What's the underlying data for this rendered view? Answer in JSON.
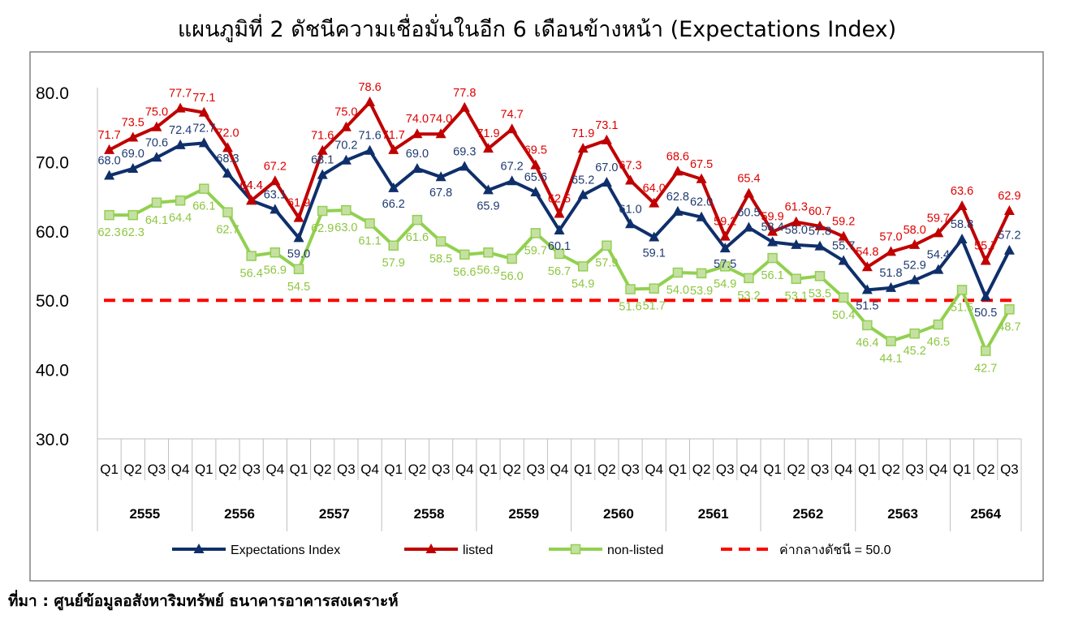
{
  "title": "แผนภูมิที่ 2 ดัชนีความเชื่อมั่นในอีก 6 เดือนข้างหน้า (Expectations Index)",
  "source": "ที่มา : ศูนย์ข้อมูลอสังหาริมทรัพย์ ธนาคารอาคารสงเคราะห์",
  "chart_data": {
    "type": "line",
    "title": "แผนภูมิที่ 2 ดัชนีความเชื่อมั่นในอีก 6 เดือนข้างหน้า (Expectations Index)",
    "xlabel": "",
    "ylabel": "",
    "ylim": [
      30,
      80
    ],
    "yticks": [
      "30.0",
      "40.0",
      "50.0",
      "60.0",
      "70.0",
      "80.0"
    ],
    "grid": false,
    "legend_position": "bottom",
    "quarters": [
      "Q1",
      "Q2",
      "Q3",
      "Q4",
      "Q1",
      "Q2",
      "Q3",
      "Q4",
      "Q1",
      "Q2",
      "Q3",
      "Q4",
      "Q1",
      "Q2",
      "Q3",
      "Q4",
      "Q1",
      "Q2",
      "Q3",
      "Q4",
      "Q1",
      "Q2",
      "Q3",
      "Q4",
      "Q1",
      "Q2",
      "Q3",
      "Q4",
      "Q1",
      "Q2",
      "Q3",
      "Q4",
      "Q1",
      "Q2",
      "Q3",
      "Q4",
      "Q1",
      "Q2",
      "Q3"
    ],
    "years": [
      {
        "label": "2555",
        "count": 4
      },
      {
        "label": "2556",
        "count": 4
      },
      {
        "label": "2557",
        "count": 4
      },
      {
        "label": "2558",
        "count": 4
      },
      {
        "label": "2559",
        "count": 4
      },
      {
        "label": "2560",
        "count": 4
      },
      {
        "label": "2561",
        "count": 4
      },
      {
        "label": "2562",
        "count": 4
      },
      {
        "label": "2563",
        "count": 4
      },
      {
        "label": "2564",
        "count": 3
      }
    ],
    "series": [
      {
        "name": "Expectations Index",
        "color": "#0f2f6b",
        "marker": "triangle",
        "values": [
          68.0,
          69.0,
          70.6,
          72.4,
          72.7,
          68.3,
          64.4,
          63.1,
          59.0,
          68.1,
          70.2,
          71.6,
          66.2,
          69.0,
          67.8,
          69.3,
          65.9,
          67.2,
          65.6,
          60.1,
          65.2,
          67.0,
          61.0,
          59.1,
          62.8,
          62.0,
          57.5,
          60.5,
          58.4,
          58.0,
          57.8,
          55.7,
          51.5,
          51.8,
          52.9,
          54.4,
          58.8,
          50.5,
          57.2
        ]
      },
      {
        "name": "listed",
        "color": "#c00000",
        "marker": "triangle",
        "values": [
          71.7,
          73.5,
          75.0,
          77.7,
          77.1,
          72.0,
          64.4,
          67.2,
          61.9,
          71.6,
          75.0,
          78.6,
          71.7,
          74.0,
          74.0,
          77.8,
          71.9,
          74.7,
          69.5,
          62.5,
          71.9,
          73.1,
          67.3,
          64.0,
          68.6,
          67.5,
          59.2,
          65.4,
          59.9,
          61.3,
          60.7,
          59.2,
          54.8,
          57.0,
          58.0,
          59.7,
          63.6,
          55.7,
          62.9
        ]
      },
      {
        "name": "non-listed",
        "color": "#92d050",
        "marker": "square",
        "values": [
          62.3,
          62.3,
          64.1,
          64.4,
          66.1,
          62.7,
          56.4,
          56.9,
          54.5,
          62.9,
          63.0,
          61.1,
          57.9,
          61.6,
          58.5,
          56.6,
          56.9,
          56.0,
          59.7,
          56.7,
          54.9,
          57.9,
          51.6,
          51.7,
          54.0,
          53.9,
          54.9,
          53.2,
          56.1,
          53.1,
          53.5,
          50.4,
          46.4,
          44.1,
          45.2,
          46.5,
          51.5,
          42.7,
          48.7
        ]
      },
      {
        "name": "ค่ากลางดัชนี = 50.0",
        "color": "#ff0000",
        "style": "dashed",
        "value": 50.0
      }
    ]
  }
}
